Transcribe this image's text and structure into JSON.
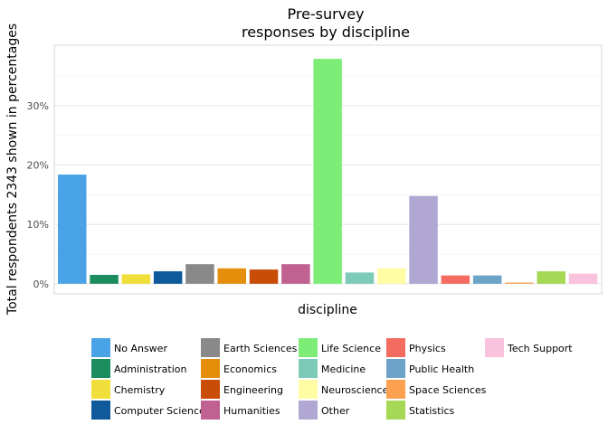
{
  "chart_data": {
    "type": "bar",
    "title": [
      "Pre-survey",
      "responses by discipline"
    ],
    "xlabel": "discipline",
    "ylabel": "Total respondents 2343 shown in percentages",
    "ylim": [
      -1.7,
      40.2
    ],
    "yticks": [
      0,
      10,
      20,
      30
    ],
    "ytick_labels": [
      "0%",
      "10%",
      "20%",
      "30%"
    ],
    "grid": true,
    "legend_position": "bottom",
    "categories": [
      "No Answer",
      "Administration",
      "Chemistry",
      "Computer Science",
      "Earth Sciences",
      "Economics",
      "Engineering",
      "Humanities",
      "Life Science",
      "Medicine",
      "Neuroscience",
      "Other",
      "Physics",
      "Public Health",
      "Space Sciences",
      "Statistics",
      "Tech Support"
    ],
    "values": [
      18.4,
      1.5,
      1.6,
      2.1,
      3.3,
      2.6,
      2.4,
      3.3,
      37.9,
      1.9,
      2.6,
      14.8,
      1.4,
      1.4,
      0.2,
      2.1,
      1.7
    ],
    "colors": [
      "#4aa3e6",
      "#1b8c5e",
      "#f0df3a",
      "#0f5a9a",
      "#898989",
      "#e58e0b",
      "#c94c07",
      "#c06191",
      "#7eed78",
      "#7ecab8",
      "#fffca4",
      "#b0a7d2",
      "#f46b5f",
      "#6ea3c9",
      "#fba150",
      "#a5d955",
      "#f9c2dd"
    ]
  }
}
